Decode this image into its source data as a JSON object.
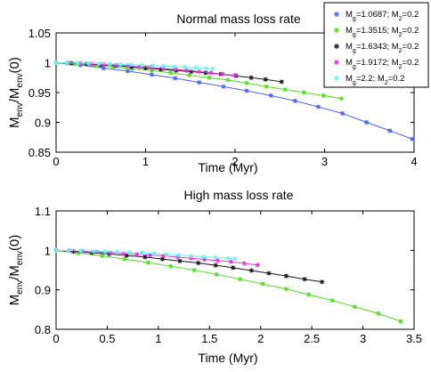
{
  "chart_data": [
    {
      "type": "line",
      "title": "Normal mass loss rate",
      "xlabel": "Time (Myr)",
      "ylabel_parts": [
        "M",
        "env",
        "/M",
        "env",
        "(0)"
      ],
      "xlim": [
        0,
        4
      ],
      "ylim": [
        0.85,
        1.05
      ],
      "xticks": [
        0,
        1,
        2,
        3,
        4
      ],
      "yticks": [
        0.85,
        0.9,
        0.95,
        1,
        1.05
      ],
      "xtick_labels": [
        "0",
        "1",
        "2",
        "3",
        "4"
      ],
      "ytick_labels": [
        "0.85",
        "0.9",
        "0.95",
        "1",
        "1.05"
      ],
      "grid": false,
      "legend_position": "top-right, outside plot area",
      "series": [
        {
          "color": "#4a63e8",
          "marker": "asterisk",
          "x": [
            0,
            0.27,
            0.53,
            0.8,
            1.07,
            1.33,
            1.6,
            1.87,
            2.13,
            2.4,
            2.67,
            2.93,
            3.2,
            3.47,
            3.73,
            3.98
          ],
          "y": [
            1.0,
            0.996,
            0.991,
            0.986,
            0.98,
            0.974,
            0.967,
            0.96,
            0.953,
            0.945,
            0.936,
            0.926,
            0.915,
            0.9,
            0.886,
            0.872
          ]
        },
        {
          "color": "#55d826",
          "marker": "asterisk",
          "x": [
            0,
            0.21,
            0.43,
            0.64,
            0.85,
            1.07,
            1.28,
            1.49,
            1.71,
            1.92,
            2.13,
            2.35,
            2.56,
            2.77,
            2.99,
            3.19
          ],
          "y": [
            1.0,
            0.998,
            0.995,
            0.993,
            0.99,
            0.987,
            0.983,
            0.979,
            0.975,
            0.971,
            0.966,
            0.96,
            0.955,
            0.95,
            0.945,
            0.94
          ]
        },
        {
          "color": "#151515",
          "marker": "asterisk",
          "x": [
            0,
            0.17,
            0.34,
            0.5,
            0.67,
            0.84,
            1.0,
            1.17,
            1.34,
            1.51,
            1.67,
            1.84,
            2.01,
            2.18,
            2.34,
            2.52
          ],
          "y": [
            1.0,
            0.999,
            0.998,
            0.996,
            0.995,
            0.993,
            0.991,
            0.989,
            0.987,
            0.985,
            0.983,
            0.981,
            0.978,
            0.975,
            0.972,
            0.968
          ]
        },
        {
          "color": "#d838d8",
          "marker": "asterisk",
          "x": [
            0,
            0.13,
            0.27,
            0.4,
            0.53,
            0.67,
            0.8,
            0.93,
            1.06,
            1.2,
            1.33,
            1.46,
            1.6,
            1.73,
            1.86,
            2.0
          ],
          "y": [
            1.0,
            0.9995,
            0.999,
            0.998,
            0.997,
            0.996,
            0.995,
            0.993,
            0.992,
            0.99,
            0.989,
            0.987,
            0.985,
            0.983,
            0.981,
            0.979
          ]
        },
        {
          "color": "#6ff0f0",
          "marker": "asterisk",
          "x": [
            0,
            0.12,
            0.24,
            0.36,
            0.48,
            0.6,
            0.72,
            0.84,
            0.96,
            1.08,
            1.2,
            1.32,
            1.44,
            1.56,
            1.68,
            1.75
          ],
          "y": [
            1.0,
            0.9997,
            0.9993,
            0.999,
            0.9985,
            0.998,
            0.9974,
            0.9968,
            0.996,
            0.9952,
            0.9944,
            0.9935,
            0.9925,
            0.9915,
            0.9905,
            0.99
          ]
        }
      ]
    },
    {
      "type": "line",
      "title": "High mass loss rate",
      "xlabel": "Time (Myr)",
      "ylabel_parts": [
        "M",
        "env",
        "/M",
        "env",
        "(0)"
      ],
      "xlim": [
        0,
        3.5
      ],
      "ylim": [
        0.8,
        1.1
      ],
      "xticks": [
        0,
        0.5,
        1,
        1.5,
        2,
        2.5,
        3,
        3.5
      ],
      "yticks": [
        0.8,
        0.9,
        1,
        1.1
      ],
      "xtick_labels": [
        "0",
        "0.5",
        "1",
        "1.5",
        "2",
        "2.5",
        "3",
        "3.5"
      ],
      "ytick_labels": [
        "0.8",
        "0.9",
        "1",
        "1.1"
      ],
      "grid": false,
      "series": [
        {
          "color": "#55d826",
          "marker": "asterisk",
          "x": [
            0,
            0.22,
            0.45,
            0.67,
            0.9,
            1.12,
            1.35,
            1.57,
            1.8,
            2.02,
            2.25,
            2.47,
            2.7,
            2.92,
            3.15,
            3.37
          ],
          "y": [
            1.0,
            0.993,
            0.986,
            0.978,
            0.969,
            0.96,
            0.95,
            0.939,
            0.927,
            0.915,
            0.902,
            0.888,
            0.873,
            0.857,
            0.84,
            0.82
          ]
        },
        {
          "color": "#151515",
          "marker": "asterisk",
          "x": [
            0,
            0.17,
            0.35,
            0.52,
            0.69,
            0.87,
            1.04,
            1.21,
            1.39,
            1.56,
            1.73,
            1.91,
            2.08,
            2.25,
            2.43,
            2.6
          ],
          "y": [
            1.0,
            0.997,
            0.994,
            0.991,
            0.987,
            0.983,
            0.978,
            0.973,
            0.968,
            0.962,
            0.956,
            0.949,
            0.942,
            0.935,
            0.927,
            0.92
          ]
        },
        {
          "color": "#d838d8",
          "marker": "asterisk",
          "x": [
            0,
            0.13,
            0.26,
            0.4,
            0.53,
            0.66,
            0.79,
            0.92,
            1.05,
            1.19,
            1.32,
            1.45,
            1.58,
            1.71,
            1.84,
            1.97
          ],
          "y": [
            1.0,
            0.999,
            0.998,
            0.996,
            0.994,
            0.992,
            0.99,
            0.988,
            0.986,
            0.983,
            0.98,
            0.977,
            0.974,
            0.971,
            0.967,
            0.963
          ]
        },
        {
          "color": "#6ff0f0",
          "marker": "asterisk",
          "x": [
            0,
            0.12,
            0.24,
            0.36,
            0.48,
            0.6,
            0.72,
            0.84,
            0.96,
            1.08,
            1.2,
            1.32,
            1.44,
            1.56,
            1.68,
            1.75
          ],
          "y": [
            1.0,
            0.9995,
            0.999,
            0.998,
            0.997,
            0.996,
            0.995,
            0.994,
            0.992,
            0.99,
            0.988,
            0.986,
            0.984,
            0.982,
            0.98,
            0.979
          ]
        }
      ]
    }
  ],
  "legend": [
    {
      "label_parts": [
        "M",
        "g",
        "=1.0687; M",
        "2",
        "=0.2"
      ],
      "color": "#4a63e8"
    },
    {
      "label_parts": [
        "M",
        "g",
        "=1.3515; M",
        "2",
        "=0.2"
      ],
      "color": "#55d826"
    },
    {
      "label_parts": [
        "M",
        "g",
        "=1.6343; M",
        "2",
        "=0.2"
      ],
      "color": "#151515"
    },
    {
      "label_parts": [
        "M",
        "g",
        "=1.9172; M",
        "2",
        "=0.2"
      ],
      "color": "#d838d8"
    },
    {
      "label_parts": [
        "M",
        "g",
        "=2.2; M",
        "2",
        "=0.2"
      ],
      "color": "#6ff0f0"
    }
  ]
}
